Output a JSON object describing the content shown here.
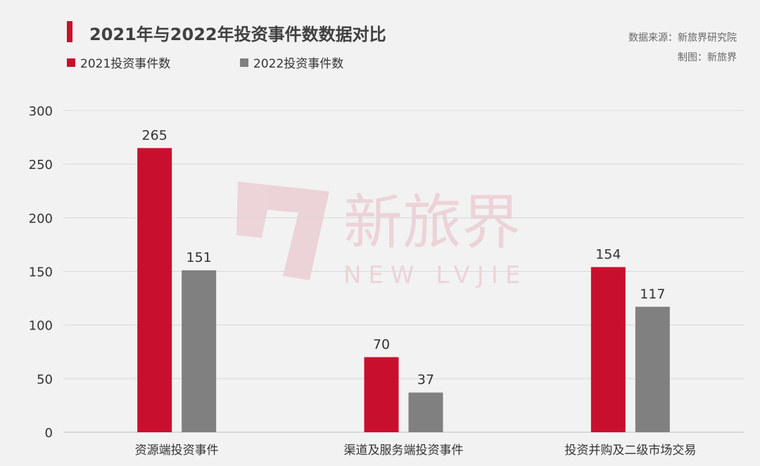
{
  "chart_data": {
    "type": "bar",
    "title": "2021年与2022年投资事件数数据对比",
    "categories": [
      "资源端投资事件",
      "渠道及服务端投资事件",
      "投资并购及二级市场交易"
    ],
    "series": [
      {
        "name": "2021投资事件数",
        "values": [
          265,
          70,
          154
        ],
        "color": "#c8102e"
      },
      {
        "name": "2022投资事件数",
        "values": [
          151,
          37,
          117
        ],
        "color": "#808080"
      }
    ],
    "ylim": [
      0,
      300
    ],
    "yticks": [
      0,
      50,
      100,
      150,
      200,
      250,
      300
    ],
    "grid": true,
    "legend_position": "top-left",
    "xlabel": "",
    "ylabel": ""
  },
  "source": {
    "line1": "数据来源：新旅界研究院",
    "line2": "制图：新旅界"
  },
  "watermark": {
    "cn": "新旅界",
    "en": "NEW LVJIE"
  },
  "colors": {
    "accent": "#c8102e",
    "background": "#f2f2f2",
    "grid": "#d9d9d9",
    "text": "#333333"
  }
}
